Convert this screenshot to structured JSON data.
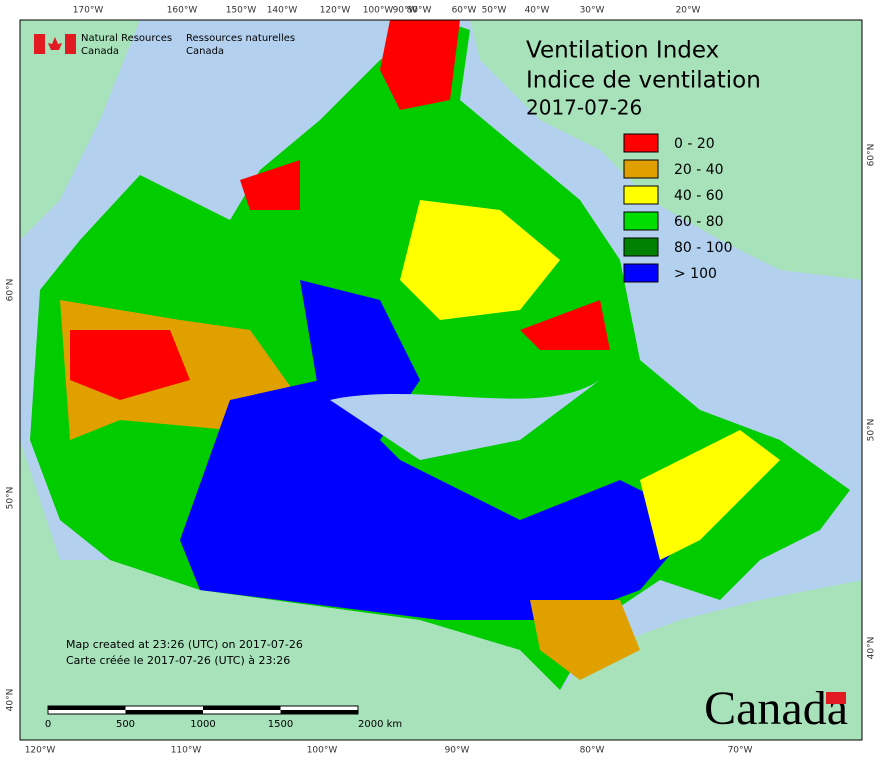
{
  "header": {
    "org_en": "Natural Resources",
    "org_en_2": "Canada",
    "org_fr": "Ressources naturelles",
    "org_fr_2": "Canada"
  },
  "title": {
    "line1": "Ventilation Index",
    "line2": "Indice de ventilation",
    "date": "2017-07-26"
  },
  "legend": [
    {
      "label": "0 - 20",
      "color": "#ff0000"
    },
    {
      "label": "20 - 40",
      "color": "#e0a000"
    },
    {
      "label": "40 - 60",
      "color": "#ffff00"
    },
    {
      "label": "60 - 80",
      "color": "#00dd00"
    },
    {
      "label": "80 - 100",
      "color": "#008000"
    },
    {
      "label": "> 100",
      "color": "#0000ff"
    }
  ],
  "graticule": {
    "top": [
      "170°W",
      "160°W",
      "150°W",
      "140°W",
      "120°W",
      "100°W",
      "90°W",
      "80°W",
      "60°W",
      "50°W",
      "40°W",
      "30°W",
      "20°W"
    ],
    "bottom": [
      "120°W",
      "110°W",
      "100°W",
      "90°W",
      "80°W",
      "70°W"
    ],
    "left": [
      "60°N",
      "50°N",
      "40°N"
    ],
    "right": [
      "60°N",
      "50°N",
      "40°N"
    ]
  },
  "footer": {
    "line1": "Map created at 23:26 (UTC) on 2017-07-26",
    "line2": "Carte créée le 2017-07-26 (UTC) à 23:26"
  },
  "scale_bar": [
    "0",
    "500",
    "1000",
    "1500",
    "2000 km"
  ],
  "wordmark": "Canada"
}
